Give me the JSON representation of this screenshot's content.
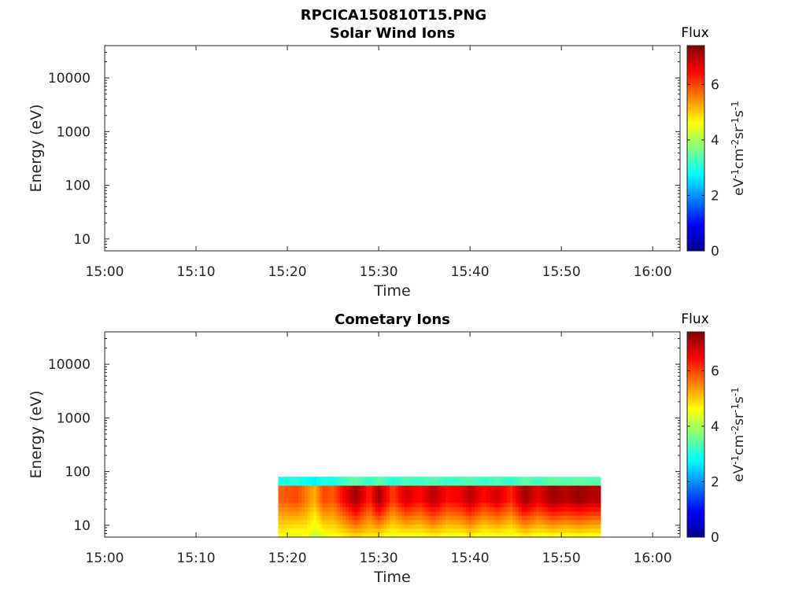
{
  "figure": {
    "title": "RPCICA150810T15.PNG",
    "colorbar": {
      "label": "Flux",
      "unit_parts": [
        "eV",
        "-1",
        "cm",
        "-2",
        "sr",
        "-1",
        "s",
        "-1"
      ],
      "ticks": [
        0,
        2,
        4,
        6
      ],
      "range": [
        0,
        7.4
      ],
      "colormap": "jet",
      "colormap_stops": [
        "#00008f",
        "#0000ff",
        "#0080ff",
        "#00ffff",
        "#80ff80",
        "#ffff00",
        "#ff8000",
        "#ff0000",
        "#800000"
      ]
    }
  },
  "chart_data": [
    {
      "type": "heatmap",
      "title": "Solar Wind Ions",
      "xlabel": "Time",
      "ylabel": "Energy (eV)",
      "x_ticks": [
        "15:00",
        "15:10",
        "15:20",
        "15:30",
        "15:40",
        "15:50",
        "16:00"
      ],
      "xlim_minutes": [
        0,
        63
      ],
      "y_ticks": [
        10,
        100,
        1000,
        10000
      ],
      "ylim": [
        6,
        40000
      ],
      "yscale": "log",
      "flux": []
    },
    {
      "type": "heatmap",
      "title": "Cometary Ions",
      "xlabel": "Time",
      "ylabel": "Energy (eV)",
      "x_ticks": [
        "15:00",
        "15:10",
        "15:20",
        "15:30",
        "15:40",
        "15:50",
        "16:00"
      ],
      "xlim_minutes": [
        0,
        63
      ],
      "y_ticks": [
        10,
        100,
        1000,
        10000
      ],
      "ylim": [
        6,
        40000
      ],
      "yscale": "log",
      "data_time_range_minutes": [
        19,
        54.3
      ],
      "data_energy_range": [
        6,
        80
      ],
      "flux_columns": [
        {
          "t": 19.5,
          "top": 5.8,
          "bottom": 4.6
        },
        {
          "t": 21.0,
          "top": 6.0,
          "bottom": 4.4
        },
        {
          "t": 22.0,
          "top": 5.6,
          "bottom": 4.6
        },
        {
          "t": 23.0,
          "top": 5.2,
          "bottom": 4.2
        },
        {
          "t": 24.0,
          "top": 6.0,
          "bottom": 4.5
        },
        {
          "t": 25.0,
          "top": 5.8,
          "bottom": 4.6
        },
        {
          "t": 26.0,
          "top": 6.4,
          "bottom": 4.7
        },
        {
          "t": 27.5,
          "top": 7.2,
          "bottom": 5.0
        },
        {
          "t": 29.0,
          "top": 6.2,
          "bottom": 4.8
        },
        {
          "t": 30.0,
          "top": 7.2,
          "bottom": 4.8
        },
        {
          "t": 31.5,
          "top": 6.0,
          "bottom": 4.5
        },
        {
          "t": 33.0,
          "top": 6.8,
          "bottom": 4.6
        },
        {
          "t": 34.5,
          "top": 6.4,
          "bottom": 4.6
        },
        {
          "t": 36.0,
          "top": 7.0,
          "bottom": 4.8
        },
        {
          "t": 37.5,
          "top": 6.4,
          "bottom": 4.6
        },
        {
          "t": 39.0,
          "top": 6.6,
          "bottom": 4.6
        },
        {
          "t": 40.0,
          "top": 7.0,
          "bottom": 4.8
        },
        {
          "t": 41.5,
          "top": 6.4,
          "bottom": 4.5
        },
        {
          "t": 43.0,
          "top": 6.8,
          "bottom": 4.6
        },
        {
          "t": 44.5,
          "top": 6.2,
          "bottom": 4.5
        },
        {
          "t": 46.0,
          "top": 7.2,
          "bottom": 4.8
        },
        {
          "t": 47.5,
          "top": 6.6,
          "bottom": 4.6
        },
        {
          "t": 49.0,
          "top": 7.2,
          "bottom": 4.7
        },
        {
          "t": 50.5,
          "top": 7.0,
          "bottom": 4.6
        },
        {
          "t": 52.0,
          "top": 7.2,
          "bottom": 4.7
        },
        {
          "t": 53.5,
          "top": 7.0,
          "bottom": 4.6
        }
      ]
    }
  ]
}
